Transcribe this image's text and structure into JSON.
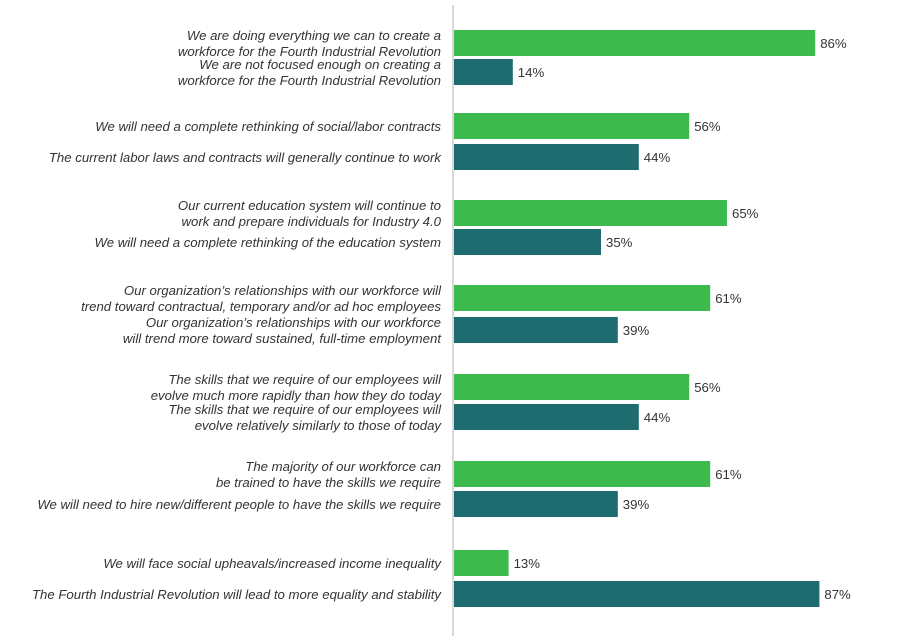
{
  "chart_data": {
    "type": "bar",
    "orientation": "horizontal",
    "value_unit": "%",
    "colors": {
      "first": "#3dba4e",
      "second": "#1e6b70",
      "axis": "#b0b0b0"
    },
    "groups": [
      {
        "bars": [
          {
            "label": [
              "We are doing everything we can to create a",
              "workforce for the Fourth Industrial Revolution"
            ],
            "value": 86,
            "display": "86%"
          },
          {
            "label": [
              "We are not focused enough on creating a",
              "workforce for the Fourth Industrial Revolution"
            ],
            "value": 14,
            "display": "14%"
          }
        ]
      },
      {
        "bars": [
          {
            "label": [
              "We will need a complete rethinking of social/labor contracts"
            ],
            "value": 56,
            "display": "56%"
          },
          {
            "label": [
              "The current labor laws and contracts will generally continue to work"
            ],
            "value": 44,
            "display": "44%"
          }
        ]
      },
      {
        "bars": [
          {
            "label": [
              "Our current education system will continue to",
              "work and prepare individuals for Industry 4.0"
            ],
            "value": 65,
            "display": "65%"
          },
          {
            "label": [
              "We will need a complete rethinking of the education system"
            ],
            "value": 35,
            "display": "35%"
          }
        ]
      },
      {
        "bars": [
          {
            "label": [
              "Our organization’s relationships with our workforce will",
              "trend toward contractual, temporary and/or ad hoc employees"
            ],
            "value": 61,
            "display": "61%"
          },
          {
            "label": [
              "Our organization’s relationships with our workforce",
              "will trend more toward sustained, full-time employment"
            ],
            "value": 39,
            "display": "39%"
          }
        ]
      },
      {
        "bars": [
          {
            "label": [
              "The skills that we require of our employees will",
              "evolve much more rapidly than how they do today"
            ],
            "value": 56,
            "display": "56%"
          },
          {
            "label": [
              "The skills that we require of our employees will",
              "evolve relatively similarly to those of today"
            ],
            "value": 44,
            "display": "44%"
          }
        ]
      },
      {
        "bars": [
          {
            "label": [
              "The majority of our workforce can",
              "be trained to have the skills we require"
            ],
            "value": 61,
            "display": "61%"
          },
          {
            "label": [
              "We will need to hire new/different people to have the skills we require"
            ],
            "value": 39,
            "display": "39%"
          }
        ]
      },
      {
        "bars": [
          {
            "label": [
              "We will face social upheavals/increased income inequality"
            ],
            "value": 13,
            "display": "13%"
          },
          {
            "label": [
              "The Fourth Industrial Revolution will lead to more equality and stability"
            ],
            "value": 87,
            "display": "87%"
          }
        ]
      }
    ]
  }
}
